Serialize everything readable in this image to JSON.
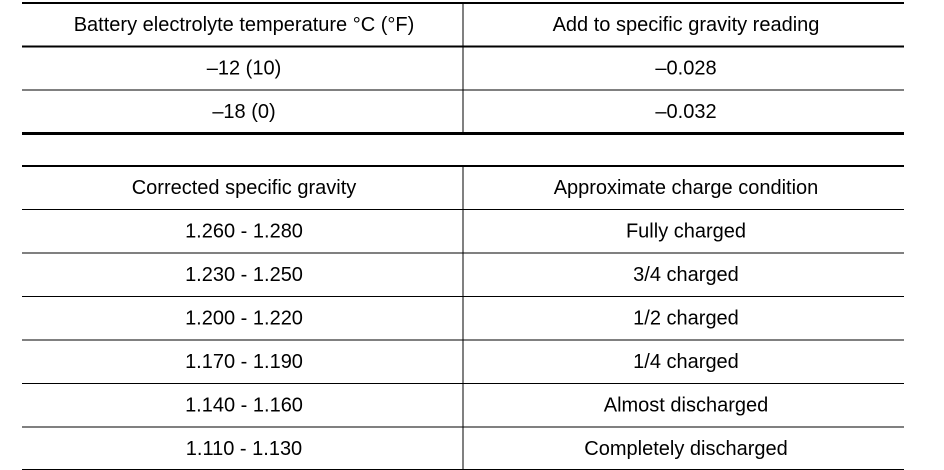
{
  "table1": {
    "header": [
      "Battery electrolyte temperature °C (°F)",
      "Add to specific gravity reading"
    ],
    "rows": [
      [
        "–12 (10)",
        "–0.028"
      ],
      [
        "–18 (0)",
        "–0.032"
      ]
    ]
  },
  "table2": {
    "header": [
      "Corrected specific gravity",
      "Approximate charge condition"
    ],
    "rows": [
      [
        "1.260 - 1.280",
        "Fully charged"
      ],
      [
        "1.230 - 1.250",
        "3/4 charged"
      ],
      [
        "1.200 - 1.220",
        "1/2 charged"
      ],
      [
        "1.170 - 1.190",
        "1/4 charged"
      ],
      [
        "1.140 - 1.160",
        "Almost discharged"
      ],
      [
        "1.110 - 1.130",
        "Completely discharged"
      ]
    ]
  }
}
